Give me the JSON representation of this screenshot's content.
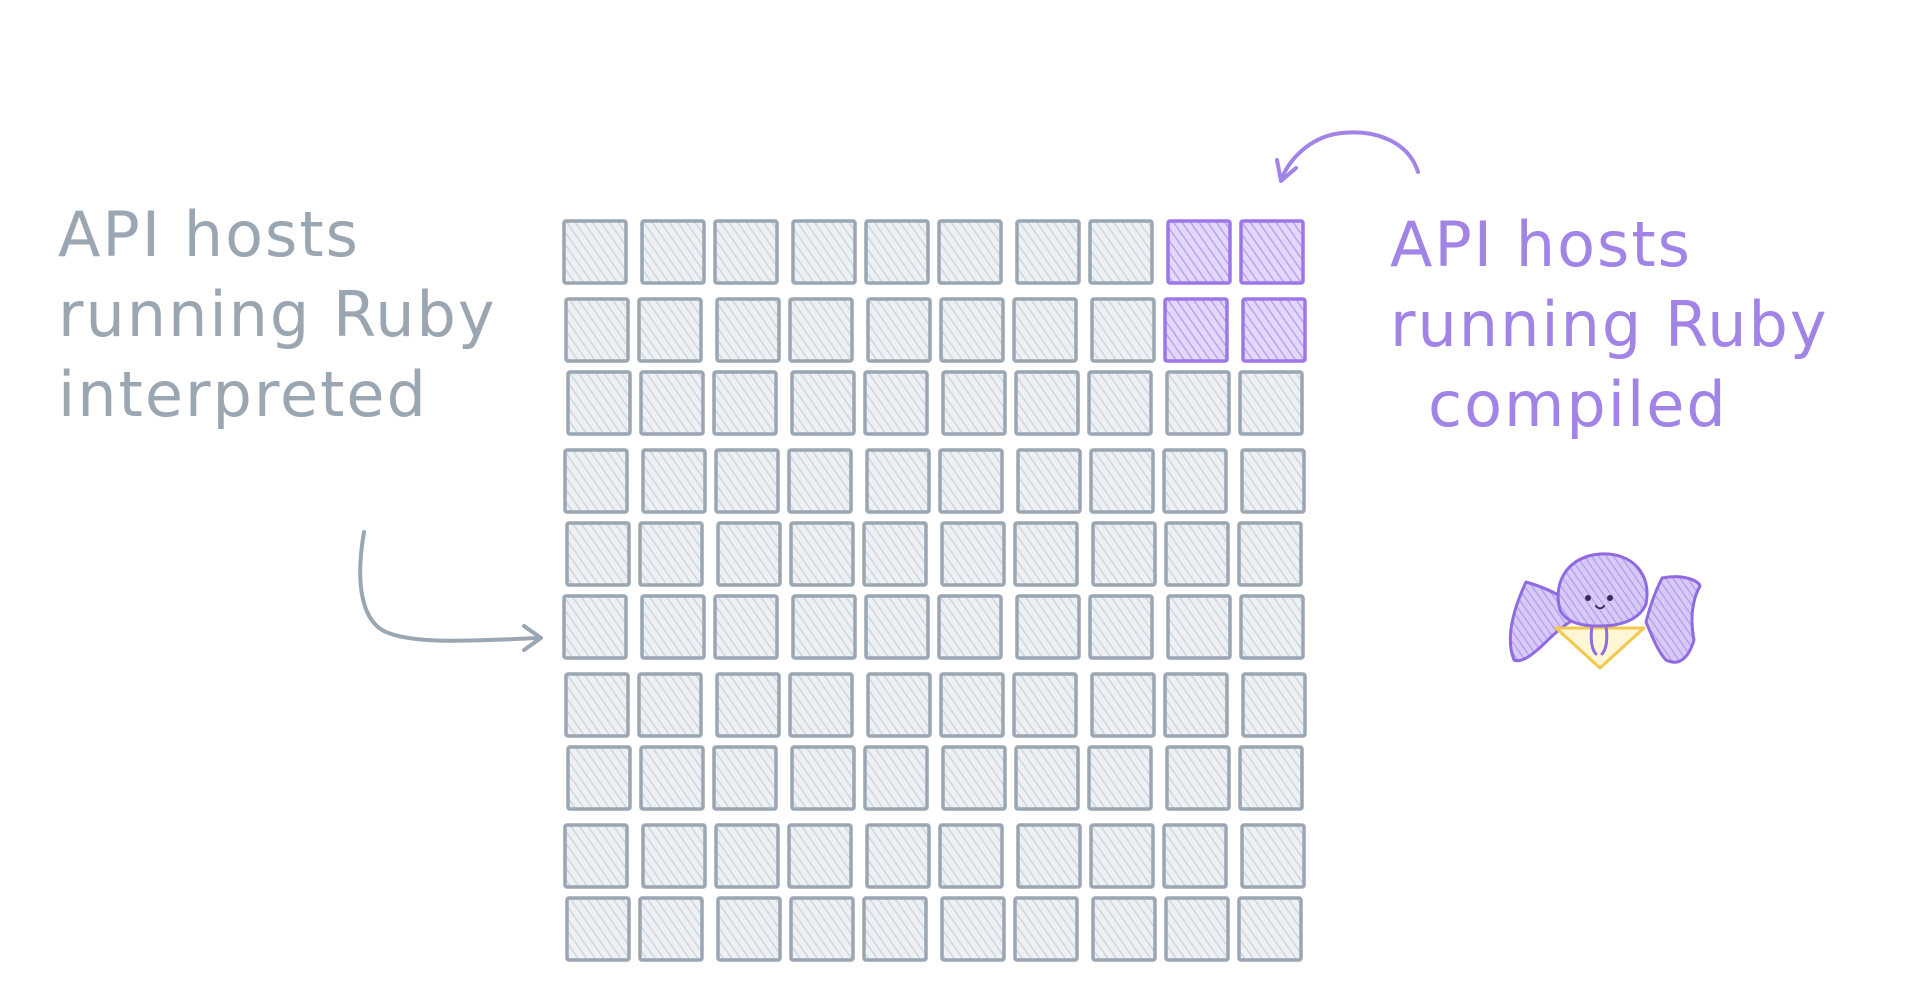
{
  "labels": {
    "interpreted": [
      "API hosts",
      "running Ruby",
      "interpreted"
    ],
    "compiled": [
      "API hosts",
      "running Ruby",
      "compiled"
    ]
  },
  "grid": {
    "rows": 10,
    "cols": 10,
    "compiled_hosts": [
      [
        0,
        8
      ],
      [
        0,
        9
      ],
      [
        1,
        8
      ],
      [
        1,
        9
      ]
    ]
  },
  "colors": {
    "interpreted": "#9aa6b2",
    "interpreted_fill": "#dfe4ea",
    "compiled": "#9d77e8",
    "compiled_fill": "#cbb8f3",
    "mascot_body": "#c6b4f0",
    "mascot_outline": "#8f6ae0",
    "mascot_accent": "#f2c94c"
  },
  "icons": [
    "curved-arrow-icon",
    "curved-arrow-icon",
    "mascot-icon"
  ]
}
